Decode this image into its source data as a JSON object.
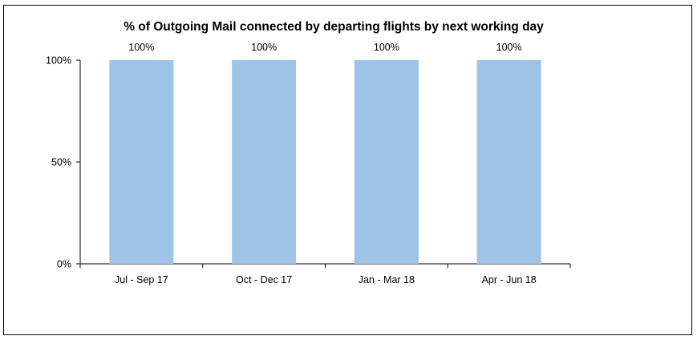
{
  "chart_data": {
    "type": "bar",
    "title": "% of Outgoing Mail connected by departing flights by next working day",
    "xlabel": "",
    "ylabel": "",
    "categories": [
      "Jul - Sep 17",
      "Oct - Dec 17",
      "Jan - Mar 18",
      "Apr - Jun 18"
    ],
    "values": [
      100,
      100,
      100,
      100
    ],
    "data_labels": [
      "100%",
      "100%",
      "100%",
      "100%"
    ],
    "ylim": [
      0,
      100
    ],
    "yticks": [
      0,
      50,
      100
    ],
    "ytick_labels": [
      "0%",
      "50%",
      "100%"
    ],
    "grid": false,
    "legend": "none",
    "bar_color": "#9dc3e6"
  }
}
